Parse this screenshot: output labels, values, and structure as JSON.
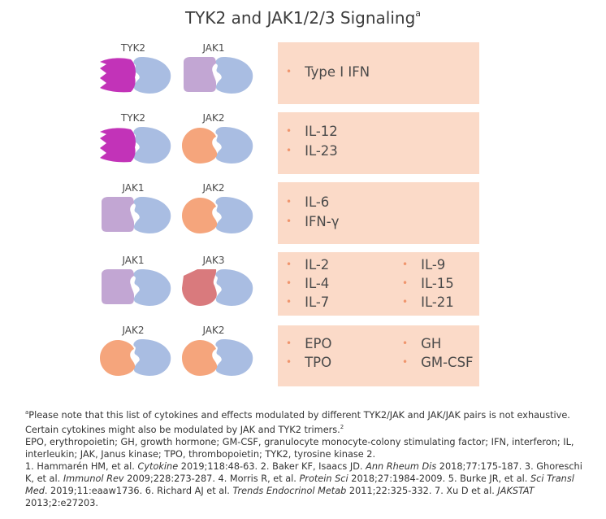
{
  "title": {
    "text": "TYK2 and JAK1/2/3 Signaling",
    "sup": "a"
  },
  "rows": [
    {
      "left_label": "TYK2",
      "right_label": "JAK1",
      "cytokines": [
        "Type I IFN"
      ]
    },
    {
      "left_label": "TYK2",
      "right_label": "JAK2",
      "cytokines": [
        "IL-12",
        "IL-23"
      ]
    },
    {
      "left_label": "JAK1",
      "right_label": "JAK2",
      "cytokines": [
        "IL-6",
        "IFN-γ"
      ]
    },
    {
      "left_label": "JAK1",
      "right_label": "JAK3",
      "cytokines": [
        "IL-2",
        "IL-4",
        "IL-7",
        "IL-9",
        "IL-15",
        "IL-21"
      ]
    },
    {
      "left_label": "JAK2",
      "right_label": "JAK2",
      "cytokines": [
        "EPO",
        "TPO",
        "GH",
        "GM-CSF"
      ]
    }
  ],
  "colors": {
    "TYK2": "#c233b8",
    "JAK1": "#c2a6d3",
    "JAK2": "#f5a57c",
    "JAK3": "#d97a7d",
    "receptor": "#a9bde2",
    "box": "#fbdac8",
    "bullet": "#f0956d"
  },
  "footnotes": {
    "note_sup": "a",
    "note_text": "Please note that this list of cytokines and effects modulated by different TYK2/JAK and JAK/JAK pairs is not exhaustive. Certain cytokines might also be modulated by JAK and TYK2 trimers.",
    "note_ref": "2",
    "abbreviations": "EPO, erythropoietin; GH, growth hormone; GM-CSF, granulocyte monocyte-colony stimulating factor; IFN, interferon; IL, interleukin; JAK, Janus kinase; TPO, thrombopoietin; TYK2, tyrosine kinase 2.",
    "ref1_a": "1. Hammarén HM, et al. ",
    "ref1_journal": "Cytokine",
    "ref1_b": " 2019;118:48-63. 2. Baker KF, Isaacs JD. ",
    "ref2_journal": "Ann Rheum Dis",
    "ref2_b": " 2018;77:175-187. 3. Ghoreschi K, et al. ",
    "ref3_journal": "Immunol Rev",
    "ref3_b": " 2009;228:273-287. 4. Morris R, et al. ",
    "ref4_journal": "Protein Sci",
    "ref4_b": " 2018;27:1984-2009. 5. Burke JR, et al. ",
    "ref5_journal": "Sci Transl Med",
    "ref5_b": ". 2019;11:eaaw1736. 6. Richard AJ et al. ",
    "ref6_journal": "Trends Endocrinol Metab",
    "ref6_b": " 2011;22:325-332. 7. Xu D et al. ",
    "ref7_journal": "JAKSTAT",
    "ref7_b": " 2013;2:e27203."
  }
}
